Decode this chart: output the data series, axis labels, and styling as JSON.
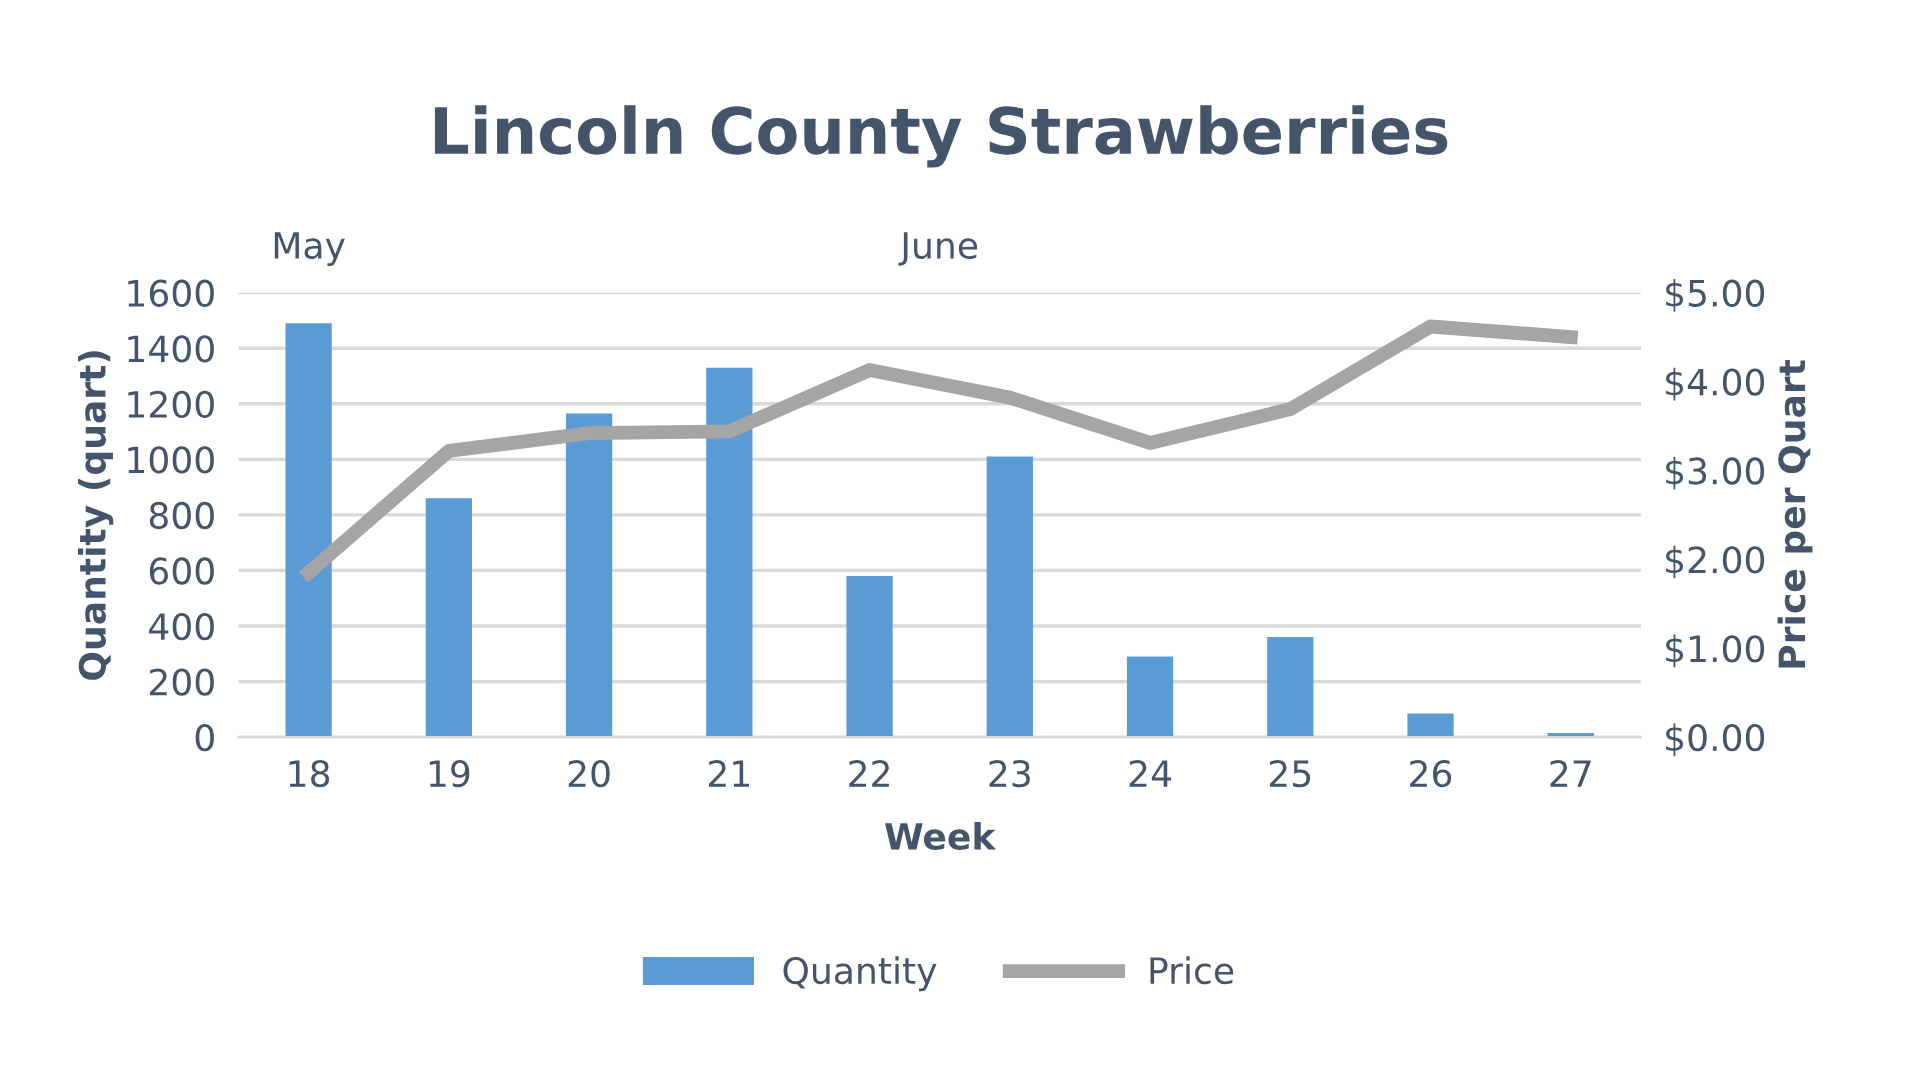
{
  "chart_data": {
    "type": "bar",
    "title": "Lincoln County Strawberries",
    "xlabel": "Week",
    "ylabel": "Quantity (quart)",
    "y2label": "Price per Quart",
    "categories": [
      "18",
      "19",
      "20",
      "21",
      "22",
      "23",
      "24",
      "25",
      "26",
      "27"
    ],
    "series": [
      {
        "name": "Quantity",
        "color": "#5b9bd5",
        "values": [
          1490,
          860,
          1165,
          1330,
          580,
          1010,
          290,
          360,
          85,
          15
        ]
      },
      {
        "name": "Price",
        "type": "line",
        "axis": "y2",
        "color": "#a5a5a5",
        "values": [
          1.85,
          3.22,
          3.42,
          3.44,
          4.13,
          3.82,
          3.31,
          3.69,
          4.62,
          4.5
        ]
      }
    ],
    "ylim": [
      0,
      1600
    ],
    "yticks": [
      0,
      200,
      400,
      600,
      800,
      1000,
      1200,
      1400,
      1600
    ],
    "y2lim": [
      0,
      5
    ],
    "y2ticks": [
      {
        "value": 0,
        "label": "$0.00"
      },
      {
        "value": 1,
        "label": "$1.00"
      },
      {
        "value": 2,
        "label": "$2.00"
      },
      {
        "value": 3,
        "label": "$3.00"
      },
      {
        "value": 4,
        "label": "$4.00"
      },
      {
        "value": 5,
        "label": "$5.00"
      }
    ],
    "annotations": [
      "May",
      "June"
    ],
    "grid": "y",
    "legend": "bottom",
    "marker": "none",
    "line_style": "solid"
  }
}
